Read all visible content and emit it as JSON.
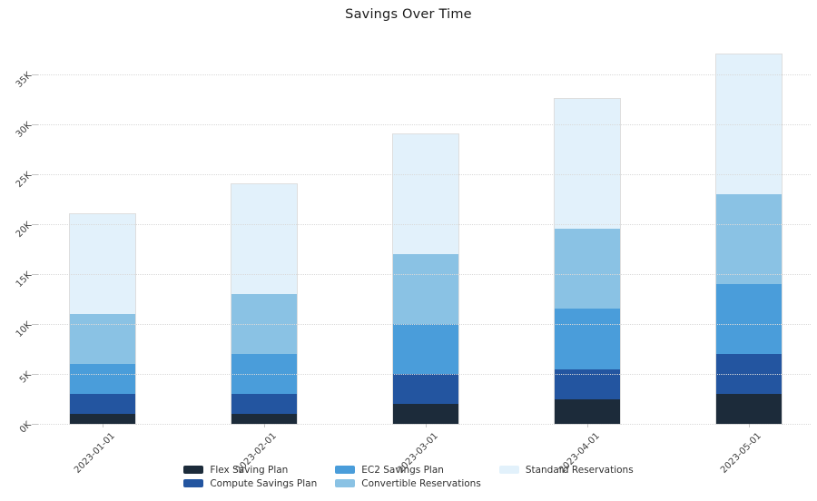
{
  "title": "Savings Over Time",
  "chart_data": {
    "type": "bar",
    "stacked": true,
    "title": "Savings Over Time",
    "xlabel": "",
    "ylabel": "",
    "background": "#ffffff",
    "categories": [
      "2023-01-01",
      "2023-02-01",
      "2023-03-01",
      "2023-04-01",
      "2023-05-01"
    ],
    "series": [
      {
        "name": "Flex Saving Plan",
        "color": "#1c2b3a",
        "values": [
          1000,
          1000,
          2000,
          2500,
          3000
        ]
      },
      {
        "name": "Compute Savings Plan",
        "color": "#2355a0",
        "values": [
          2000,
          2000,
          3000,
          3000,
          4000
        ]
      },
      {
        "name": "EC2 Savings Plan",
        "color": "#4a9dda",
        "values": [
          3000,
          4000,
          5000,
          6000,
          7000
        ]
      },
      {
        "name": "Convertible Reservations",
        "color": "#8ac2e4",
        "values": [
          5000,
          6000,
          7000,
          8000,
          9000
        ]
      },
      {
        "name": "Standard Reservations",
        "color": "#e2f1fb",
        "values": [
          10000,
          11000,
          12000,
          13000,
          14000
        ]
      }
    ],
    "totals": [
      21000,
      24000,
      29000,
      32500,
      37000
    ],
    "yticks": [
      {
        "label": "0K",
        "value": 0
      },
      {
        "label": "5K",
        "value": 5000
      },
      {
        "label": "10K",
        "value": 10000
      },
      {
        "label": "15K",
        "value": 15000
      },
      {
        "label": "20K",
        "value": 20000
      },
      {
        "label": "25K",
        "value": 25000
      },
      {
        "label": "30K",
        "value": 30000
      },
      {
        "label": "35K",
        "value": 35000
      }
    ],
    "ylim": [
      0,
      37900
    ],
    "grid": {
      "orientation": "horizontal",
      "style": "dotted",
      "color": "#d9d9d9"
    },
    "legend": {
      "position": "bottom-center",
      "columns": [
        [
          0,
          1
        ],
        [
          2,
          3
        ],
        [
          4
        ]
      ]
    }
  }
}
